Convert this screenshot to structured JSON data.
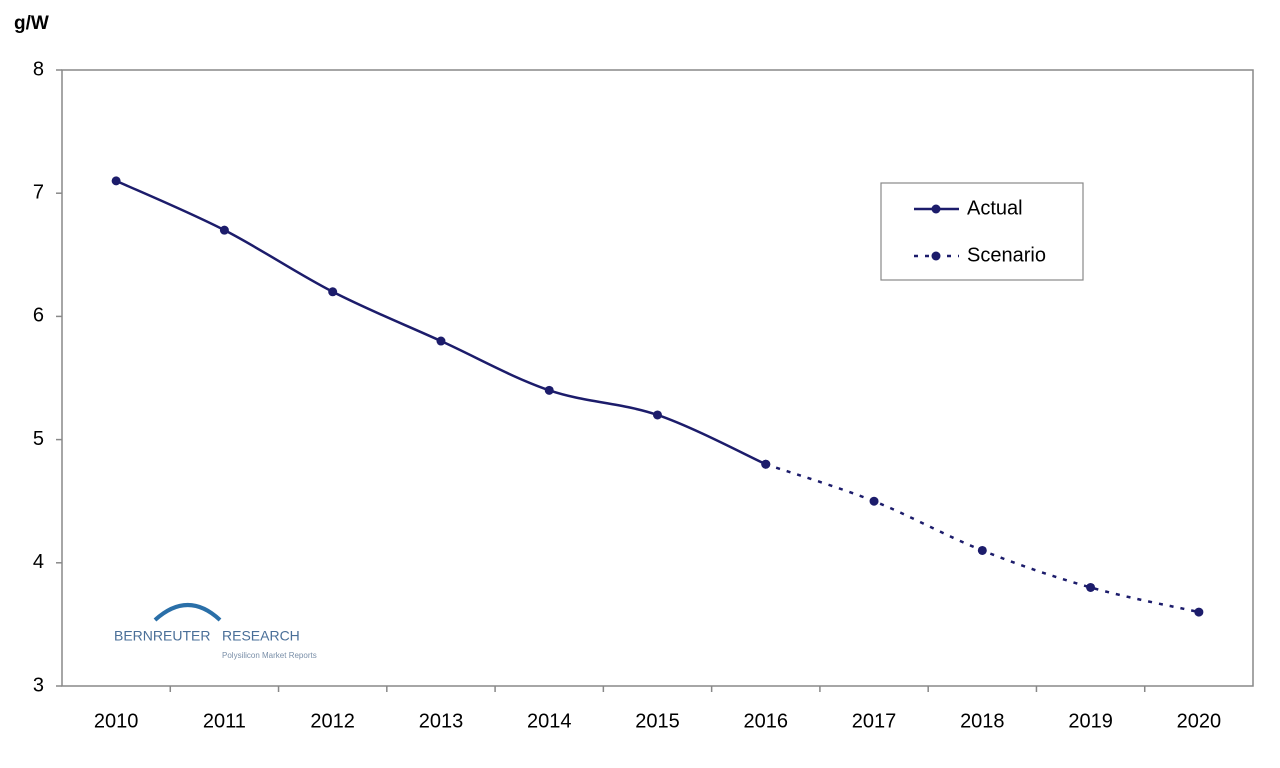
{
  "chart_data": {
    "type": "line",
    "y_label": "g/W",
    "categories": [
      "2010",
      "2011",
      "2012",
      "2013",
      "2014",
      "2015",
      "2016",
      "2017",
      "2018",
      "2019",
      "2020"
    ],
    "series": [
      {
        "name": "Actual",
        "color": "#1c1c6b",
        "dash": false,
        "values": [
          7.1,
          6.7,
          6.2,
          5.8,
          5.4,
          5.2,
          4.8,
          null,
          null,
          null,
          null
        ]
      },
      {
        "name": "Scenario",
        "color": "#1c1c6b",
        "dash": true,
        "values": [
          null,
          null,
          null,
          null,
          null,
          null,
          4.8,
          4.5,
          4.1,
          3.8,
          3.6
        ]
      }
    ],
    "ylim": [
      3,
      8
    ],
    "yticks": [
      3,
      4,
      5,
      6,
      7,
      8
    ],
    "grid": false,
    "legend": "upper-right",
    "annotations": [
      "BERNREUTER",
      "RESEARCH",
      "Polysilicon Market Reports"
    ]
  }
}
